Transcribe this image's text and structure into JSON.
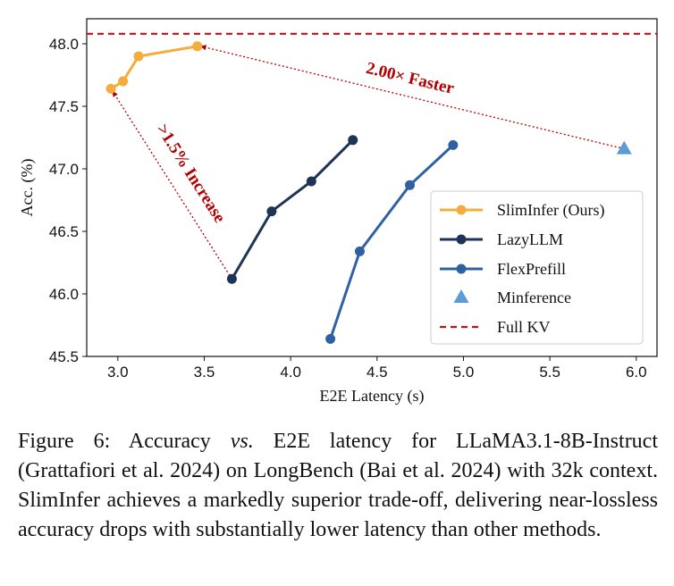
{
  "chart_data": {
    "type": "line",
    "xlabel": "E2E Latency (s)",
    "ylabel": "Acc. (%)",
    "xlim": [
      2.82,
      6.12
    ],
    "ylim": [
      45.5,
      48.2
    ],
    "xticks": [
      "3.0",
      "3.5",
      "4.0",
      "4.5",
      "5.0",
      "5.5",
      "6.0"
    ],
    "yticks": [
      "45.5",
      "46.0",
      "46.5",
      "47.0",
      "47.5",
      "48.0"
    ],
    "series": [
      {
        "name": "SlimInfer (Ours)",
        "color": "#f5ac3a",
        "marker": "circle",
        "x": [
          2.96,
          3.03,
          3.12,
          3.46
        ],
        "y": [
          47.64,
          47.7,
          47.9,
          47.98
        ]
      },
      {
        "name": "LazyLLM",
        "color": "#1e3456",
        "marker": "circle",
        "x": [
          3.66,
          3.89,
          4.12,
          4.36
        ],
        "y": [
          46.12,
          46.66,
          46.9,
          47.23
        ]
      },
      {
        "name": "FlexPrefill",
        "color": "#3060a4",
        "marker": "circle",
        "x": [
          4.23,
          4.4,
          4.69,
          4.94
        ],
        "y": [
          45.64,
          46.34,
          46.87,
          47.19
        ]
      },
      {
        "name": "Minference",
        "color": "#5b9bd8",
        "marker": "triangle",
        "x": [
          5.93
        ],
        "y": [
          47.16
        ]
      }
    ],
    "reference_line": {
      "name": "Full KV",
      "color": "#c0101a",
      "style": "dashed",
      "y": 48.08
    },
    "annotations": [
      {
        "text": "2.00× Faster",
        "from": [
          5.93,
          47.16
        ],
        "to": [
          3.48,
          47.98
        ]
      },
      {
        "text": ">1.5% Increase",
        "from": [
          3.66,
          46.12
        ],
        "to": [
          2.97,
          47.62
        ]
      }
    ],
    "legend_position": "lower-right"
  },
  "caption": {
    "prefix": "Figure 6: Accuracy ",
    "vs": "vs.",
    "rest": " E2E latency for LLaMA3.1-8B-Instruct (Grattafiori et al. 2024) on LongBench (Bai et al. 2024) with 32k context. SlimInfer achieves a markedly superior trade-off, delivering near-lossless accuracy drops with substantially lower latency than other methods."
  }
}
